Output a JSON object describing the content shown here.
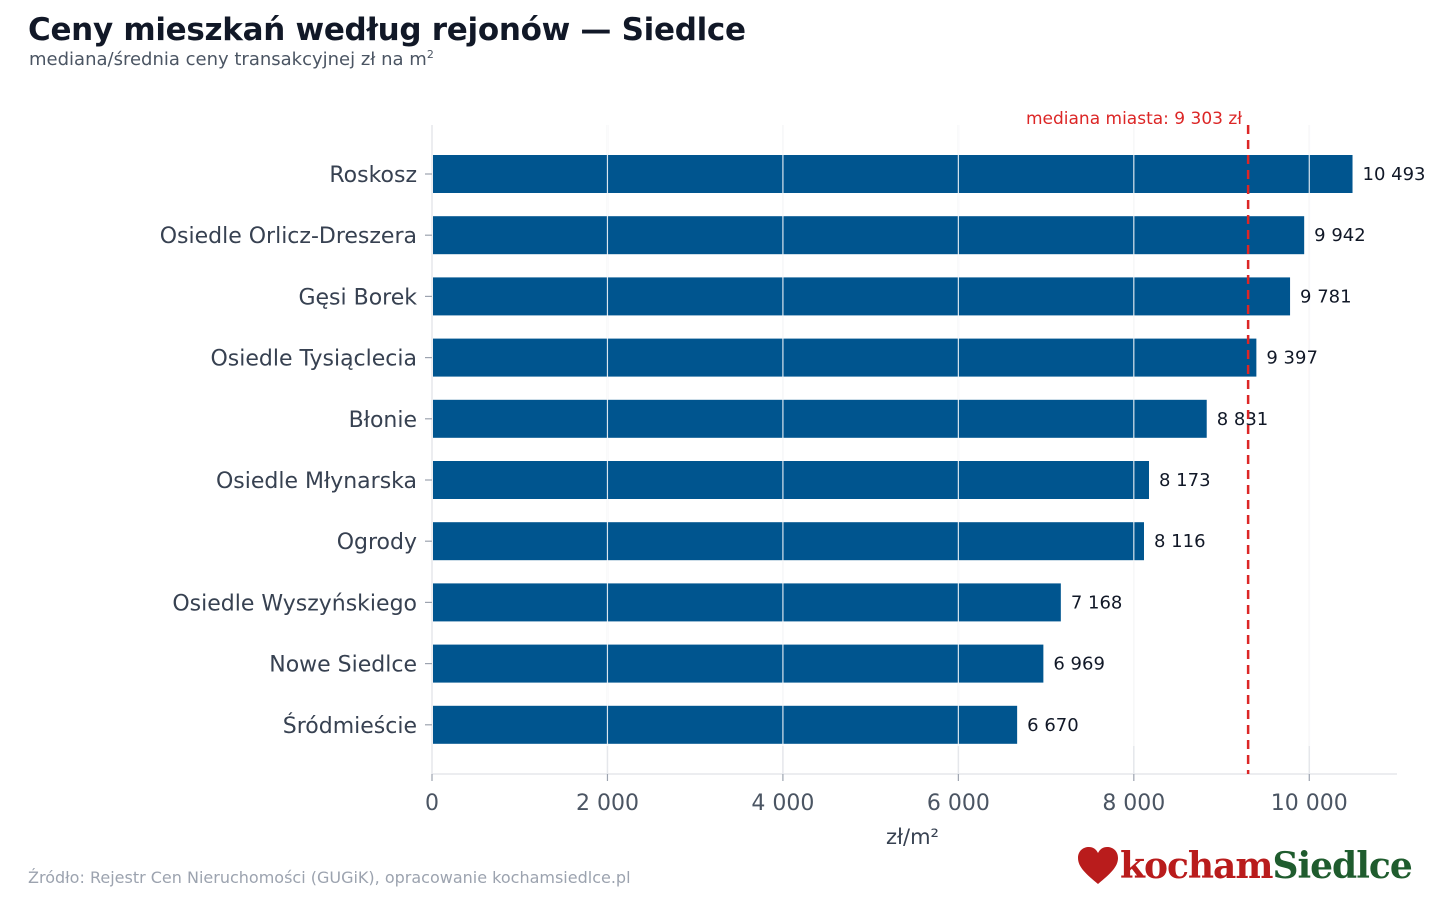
{
  "header": {
    "title": "Ceny mieszkań według rejonów — Siedlce",
    "subtitle": "mediana/średnia ceny transakcyjnej zł na m",
    "subtitle_sup": "2"
  },
  "chart_data": {
    "type": "bar",
    "orientation": "horizontal",
    "categories": [
      "Roskosz",
      "Osiedle Orlicz-Dreszera",
      "Gęsi Borek",
      "Osiedle Tysiąclecia",
      "Błonie",
      "Osiedle Młynarska",
      "Ogrody",
      "Osiedle Wyszyńskiego",
      "Nowe Siedlce",
      "Śródmieście"
    ],
    "values": [
      10493,
      9942,
      9781,
      9397,
      8831,
      8173,
      8116,
      7168,
      6969,
      6670
    ],
    "value_labels": [
      "10 493",
      "9 942",
      "9 781",
      "9 397",
      "8 831",
      "8 173",
      "8 116",
      "7 168",
      "6 969",
      "6 670"
    ],
    "xlabel": "zł/m²",
    "xlim": [
      0,
      11000
    ],
    "xticks": [
      0,
      2000,
      4000,
      6000,
      8000,
      10000
    ],
    "xtick_labels": [
      "0",
      "2 000",
      "4 000",
      "6 000",
      "8 000",
      "10 000"
    ],
    "grid": "vertical",
    "bar_color": "#00558f",
    "reference_line": {
      "value": 9303,
      "label": "mediana miasta: 9 303 zł",
      "color": "#dc2626",
      "style": "dashed"
    }
  },
  "footer": {
    "source": "Źródło: Rejestr Cen Nieruchomości (GUGiK), opracowanie kochamsiedlce.pl",
    "logo_part1": "kocham",
    "logo_part2": "Siedlce",
    "logo_icon": "heart-icon"
  }
}
